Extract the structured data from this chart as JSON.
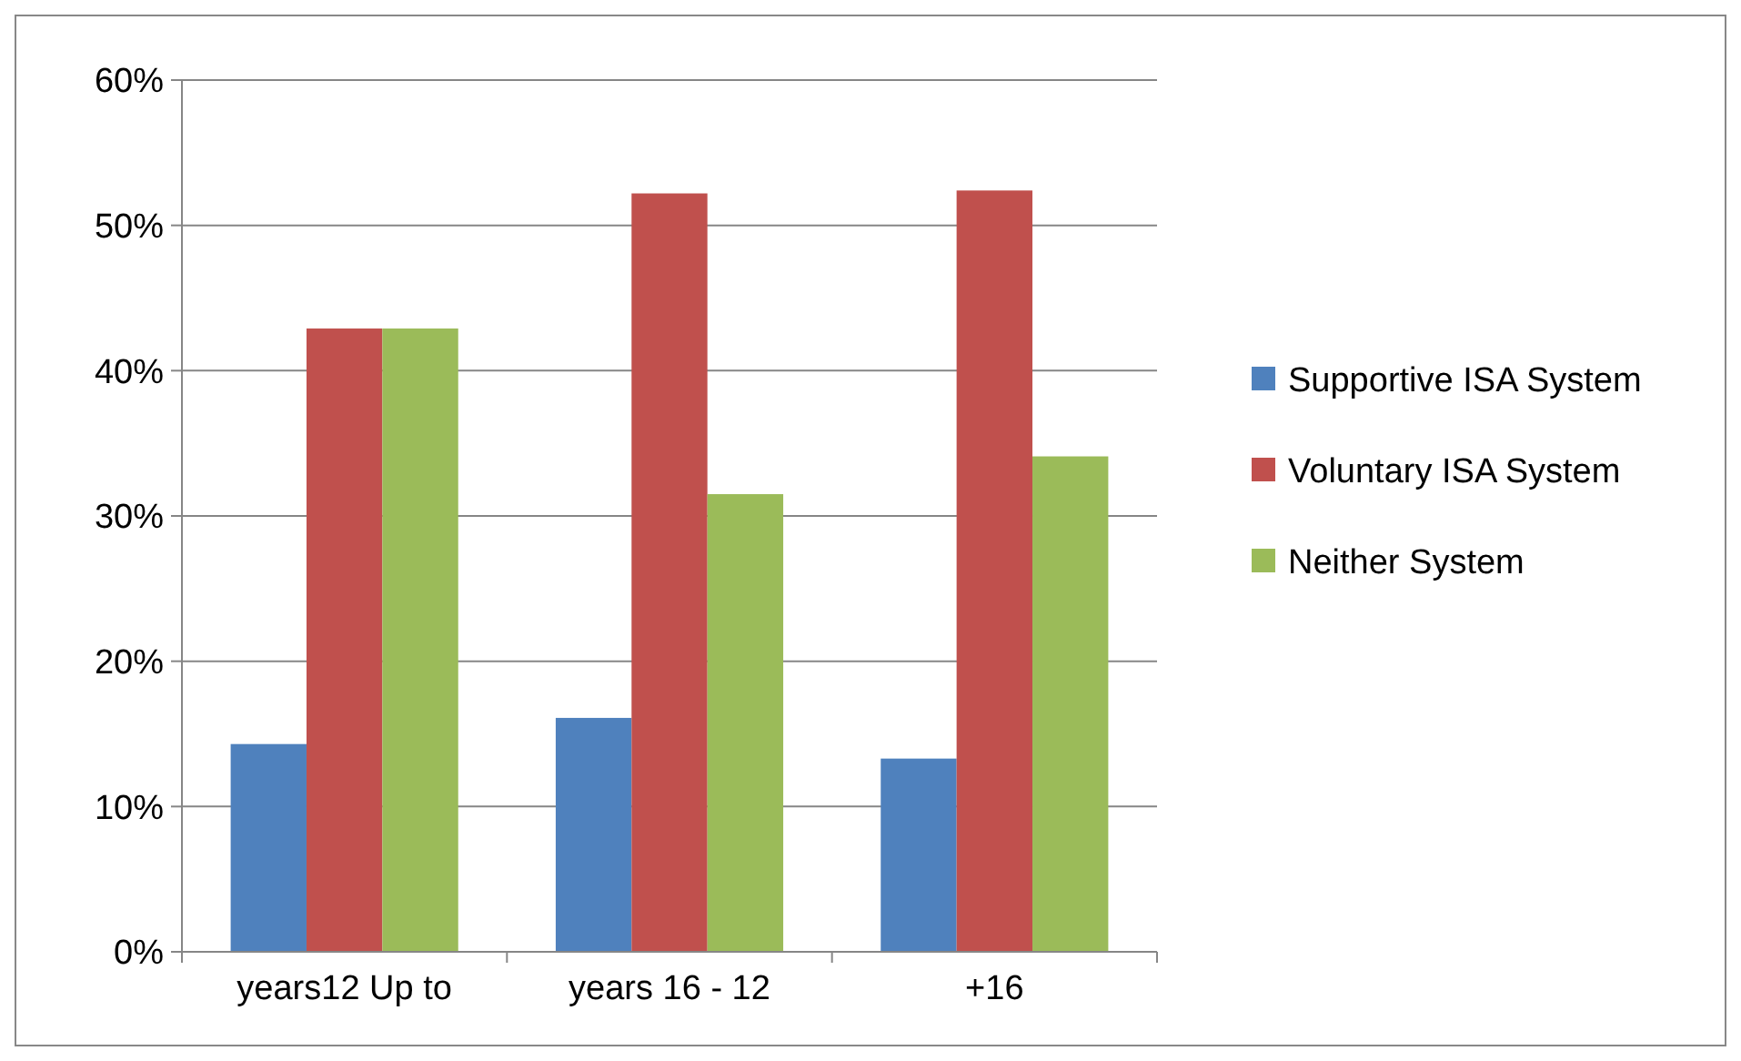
{
  "chart_data": {
    "type": "bar",
    "categories": [
      "years12 Up to",
      "years 16 - 12",
      "+16"
    ],
    "series": [
      {
        "name": "Supportive ISA System",
        "color": "#4f81bd",
        "values": [
          14.3,
          16.1,
          13.3
        ]
      },
      {
        "name": "Voluntary ISA System",
        "color": "#c0504d",
        "values": [
          42.9,
          52.2,
          52.4
        ]
      },
      {
        "name": "Neither System",
        "color": "#9bbb59",
        "values": [
          42.9,
          31.5,
          34.1
        ]
      }
    ],
    "ylim": [
      0,
      60
    ],
    "yticks": [
      {
        "value": 0,
        "label": "0%"
      },
      {
        "value": 10,
        "label": "10%"
      },
      {
        "value": 20,
        "label": "20%"
      },
      {
        "value": 30,
        "label": "30%"
      },
      {
        "value": 40,
        "label": "40%"
      },
      {
        "value": 50,
        "label": "50%"
      },
      {
        "value": 60,
        "label": "60%"
      }
    ],
    "grid": "y",
    "legend": "right"
  }
}
